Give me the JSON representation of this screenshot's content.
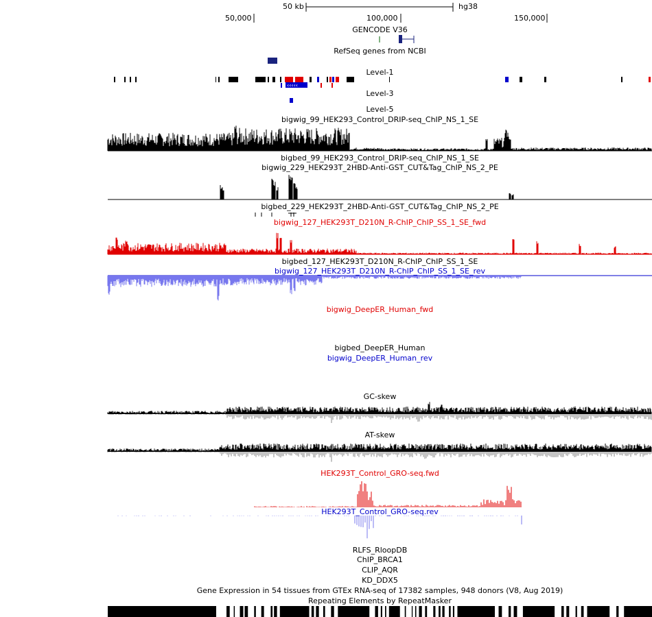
{
  "ruler": {
    "scale_text": "50 kb",
    "assembly": "hg38",
    "ticks": [
      "50,000",
      "100,000",
      "150,000"
    ]
  },
  "tracks": {
    "gencode": "GENCODE V36",
    "refseq": "RefSeq genes from NCBI",
    "level1": "Level-1",
    "level3": "Level-3",
    "level5": "Level-5",
    "drip_bigwig": "bigwig_99_HEK293_Control_DRIP-seq_ChIP_NS_1_SE",
    "drip_bigbed": "bigbed_99_HEK293_Control_DRIP-seq_ChIP_NS_1_SE",
    "cuttag_bigwig": "bigwig_229_HEK293T_2HBD-Anti-GST_CUT&Tag_ChIP_NS_2_PE",
    "cuttag_bigbed": "bigbed_229_HEK293T_2HBD-Anti-GST_CUT&Tag_ChIP_NS_2_PE",
    "rchip_fwd": "bigwig_127_HEK293T_D210N_R-ChIP_ChIP_SS_1_SE_fwd",
    "rchip_bigbed": "bigbed_127_HEK293T_D210N_R-ChIP_ChIP_SS_1_SE",
    "rchip_rev": "bigwig_127_HEK293T_D210N_R-ChIP_ChIP_SS_1_SE_rev",
    "deeper_fwd": "bigwig_DeepER_Human_fwd",
    "deeper_bigbed": "bigbed_DeepER_Human",
    "deeper_rev": "bigwig_DeepER_Human_rev",
    "gc_skew": "GC-skew",
    "at_skew": "AT-skew",
    "gro_fwd": "HEK293T_Control_GRO-seq.fwd",
    "gro_rev": "HEK293T_Control_GRO-seq.rev",
    "rlfs": "RLFS_RloopDB",
    "chip_brca1": "ChIP_BRCA1",
    "clip_aqr": "CLIP_AQR",
    "kd_ddx5": "KD_DDX5",
    "gtex": "Gene Expression in 54 tissues from GTEx RNA-seq of 17382 samples, 948 donors (V8, Aug 2019)",
    "repeatmasker": "Repeating Elements by RepeatMasker"
  },
  "colors": {
    "black": "#000000",
    "red": "#e00000",
    "blue": "#0000cc",
    "light_blue": "#7777ee",
    "navy": "#1a237e",
    "gray": "#888888",
    "green": "#006400"
  }
}
